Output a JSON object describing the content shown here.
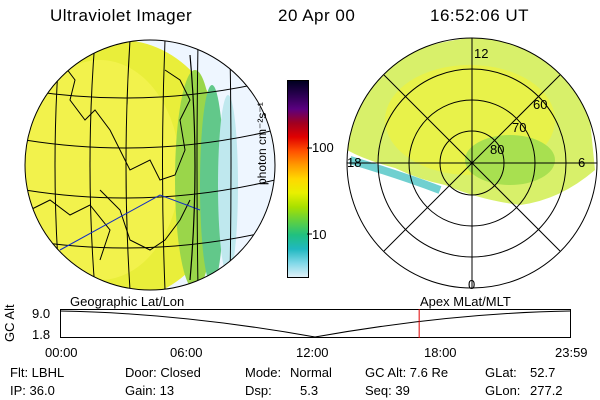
{
  "header": {
    "instrument": "Ultraviolet Imager",
    "date": "20 Apr 00",
    "time": "16:52:06 UT"
  },
  "colorbar": {
    "unit_label": "photon cm⁻²s⁻¹",
    "ticks": [
      {
        "label": "100",
        "value": 100
      },
      {
        "label": "10",
        "value": 10
      }
    ],
    "gradient": [
      "#000020",
      "#2a0050",
      "#5a0080",
      "#a00020",
      "#e00000",
      "#ff5000",
      "#ff9a00",
      "#ffd800",
      "#e8f000",
      "#a8e000",
      "#60d040",
      "#20c080",
      "#20b8c0",
      "#80d8e8",
      "#e0f0f8"
    ]
  },
  "polar": {
    "mlt_labels": [
      {
        "id": "mlt-12",
        "text": "12"
      },
      {
        "id": "mlt-6",
        "text": "6"
      },
      {
        "id": "mlt-18",
        "text": "18"
      },
      {
        "id": "mlt-0",
        "text": "0"
      }
    ],
    "lat_labels": [
      {
        "id": "lat-60",
        "text": "60"
      },
      {
        "id": "lat-70",
        "text": "70"
      },
      {
        "id": "lat-80",
        "text": "80"
      }
    ]
  },
  "timeline": {
    "left_title": "Geographic Lat/Lon",
    "right_title": "Apex MLat/MLT",
    "y_axis_label": "GC Alt",
    "y_top": "9.0",
    "y_bottom": "1.8",
    "x_ticks": [
      "00:00",
      "06:00",
      "12:00",
      "18:00",
      "23:59"
    ],
    "current_marker_time": "16:52",
    "marker_color": "#e00000"
  },
  "status": {
    "col1": {
      "r1": "Flt: LBHL",
      "r2": "IP: 36.0"
    },
    "col2": {
      "r1": "Door: Closed",
      "r2": "Gain: 13"
    },
    "col3": {
      "r1a": "Mode:",
      "r1b": "Normal",
      "r2a": "Dsp:",
      "r2b": "5.3"
    },
    "col4": {
      "r1": "GC Alt: 7.6 Re",
      "r2": "Seq: 39"
    },
    "col5": {
      "r1a": "GLat:",
      "r1b": "52.7",
      "r2a": "GLon:",
      "r2b": "277.2"
    }
  }
}
